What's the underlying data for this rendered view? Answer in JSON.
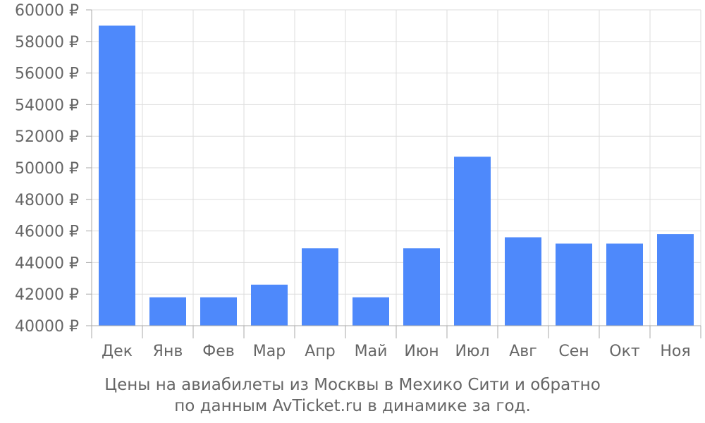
{
  "chart_data": {
    "type": "bar",
    "categories": [
      "Дек",
      "Янв",
      "Фев",
      "Мар",
      "Апр",
      "Май",
      "Июн",
      "Июл",
      "Авг",
      "Сен",
      "Окт",
      "Ноя"
    ],
    "values": [
      59000,
      41800,
      41800,
      42600,
      44900,
      41800,
      44900,
      50700,
      45600,
      45200,
      45200,
      45800
    ],
    "ylim": [
      40000,
      60000
    ],
    "yticks": [
      40000,
      42000,
      44000,
      46000,
      48000,
      50000,
      52000,
      54000,
      56000,
      58000,
      60000
    ],
    "ytick_suffix": " ₽",
    "grid": true,
    "bar_color": "#4e89fb",
    "grid_color": "#dddddd",
    "axis_color": "#aaaaaa",
    "text_color": "#666666"
  },
  "caption": {
    "line1": "Цены на авиабилеты из Москвы в Мехико Сити и обратно",
    "line2": "по данным AvTicket.ru в динамике за год."
  }
}
